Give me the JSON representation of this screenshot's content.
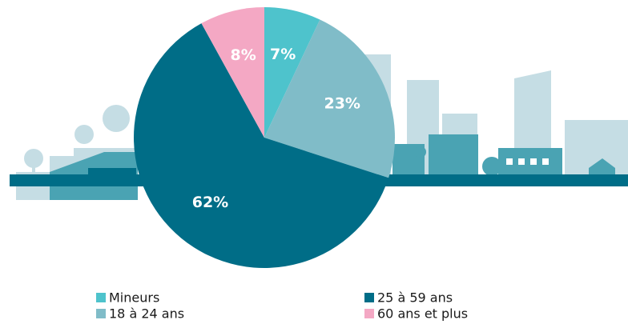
{
  "chart_data": {
    "type": "pie",
    "categories": [
      "Mineurs",
      "18 à 24 ans",
      "25 à 59 ans",
      "60 ans et plus"
    ],
    "values": [
      7,
      23,
      62,
      8
    ],
    "value_labels": [
      "7%",
      "23%",
      "62%",
      "8%"
    ],
    "colors": [
      "#4ec3cc",
      "#80bcc8",
      "#006d87",
      "#f4a8c4"
    ]
  }
}
